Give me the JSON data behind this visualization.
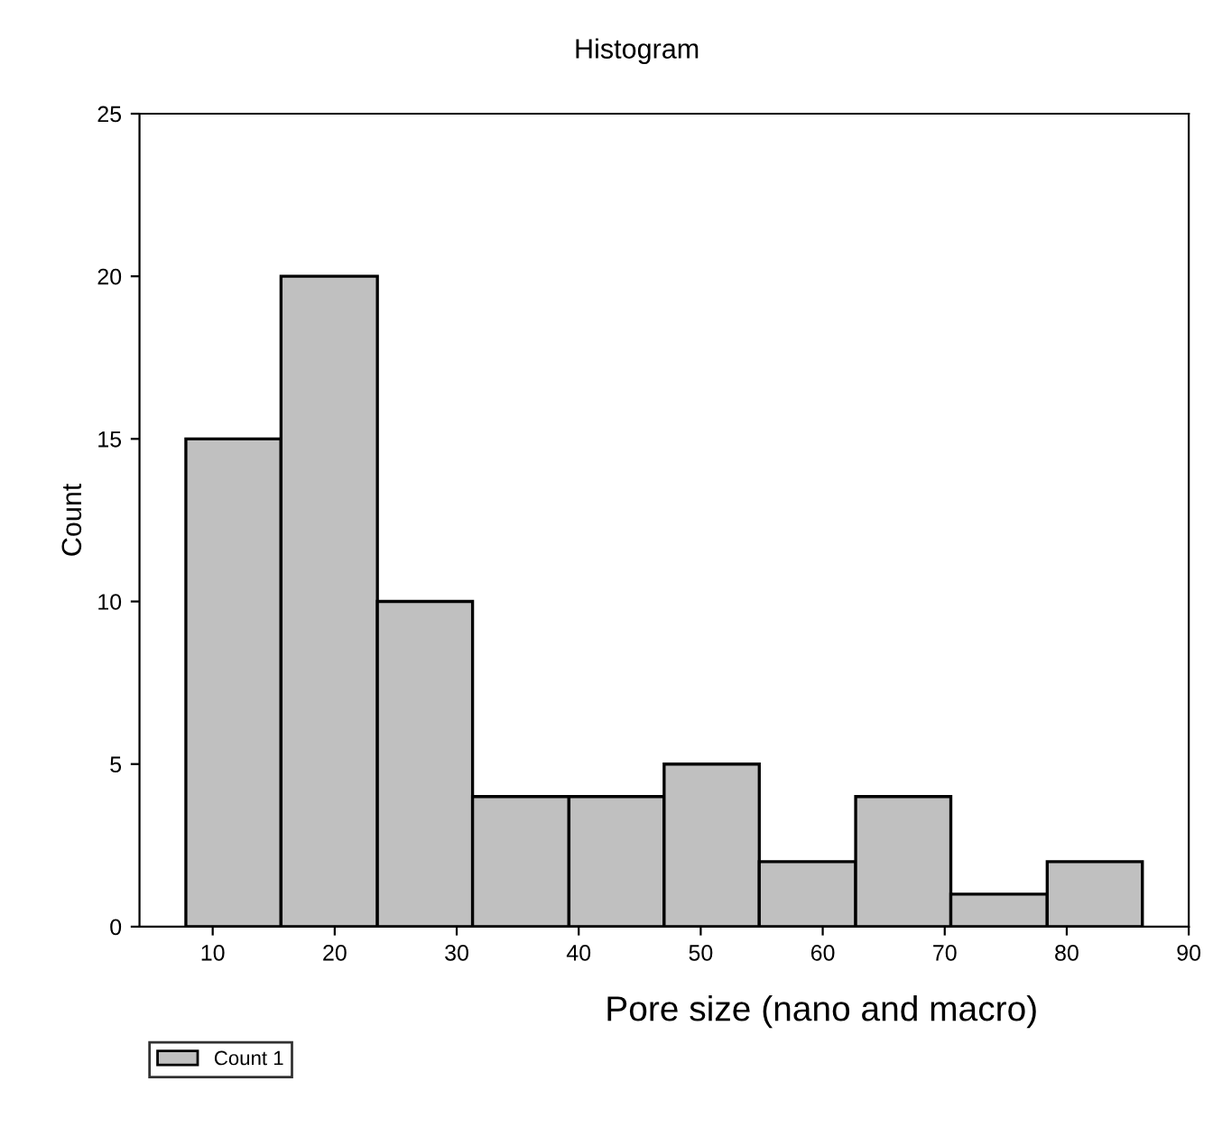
{
  "chart_data": {
    "type": "histogram",
    "title": "Histogram",
    "xlabel": "Pore size (nano and macro)",
    "ylabel": "Count",
    "bins": [
      7.8,
      15.6,
      23.5,
      31.3,
      39.2,
      47.0,
      54.8,
      62.7,
      70.5,
      78.4,
      86.2
    ],
    "series": [
      {
        "name": "Count 1",
        "color": "#c0c0c0",
        "values": [
          15,
          20,
          10,
          4,
          4,
          5,
          2,
          4,
          1,
          2
        ]
      }
    ],
    "xlim": [
      4,
      90
    ],
    "xticks": [
      10,
      20,
      30,
      40,
      50,
      60,
      70,
      80,
      90
    ],
    "ylim": [
      0,
      25
    ],
    "yticks": [
      0,
      5,
      10,
      15,
      20,
      25
    ],
    "grid": false,
    "legend": "bottom left"
  }
}
